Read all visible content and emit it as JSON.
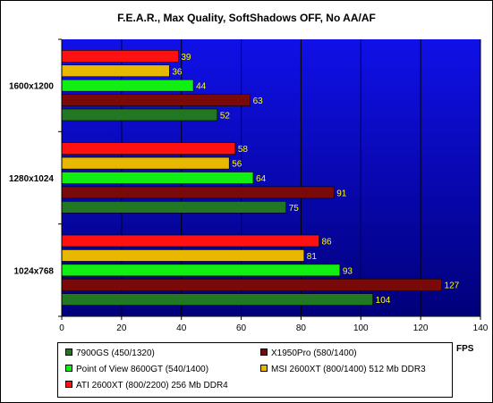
{
  "chart_data": {
    "type": "bar",
    "orientation": "horizontal",
    "title": "F.E.A.R., Max Quality, SoftShadows OFF, No AA/AF",
    "xlabel": "FPS",
    "ylabel": "",
    "xlim": [
      0,
      140
    ],
    "xticks": [
      0,
      20,
      40,
      60,
      80,
      100,
      120,
      140
    ],
    "grid": true,
    "legend_position": "bottom",
    "categories": [
      "1600x1200",
      "1280x1024",
      "1024x768"
    ],
    "series": [
      {
        "name": "7900GS (450/1320)",
        "color": "#227722",
        "values": [
          52,
          75,
          104
        ]
      },
      {
        "name": "X1950Pro (580/1400)",
        "color": "#7a0a0a",
        "values": [
          63,
          91,
          127
        ]
      },
      {
        "name": "Point of View 8600GT (540/1400)",
        "color": "#11ee11",
        "values": [
          44,
          64,
          93
        ]
      },
      {
        "name": "MSI 2600XT (800/1400) 512 Mb DDR3",
        "color": "#e8b800",
        "values": [
          36,
          56,
          81
        ]
      },
      {
        "name": "ATI 2600XT (800/2200) 256 Mb DDR4",
        "color": "#ff1111",
        "values": [
          39,
          58,
          86
        ]
      }
    ]
  }
}
